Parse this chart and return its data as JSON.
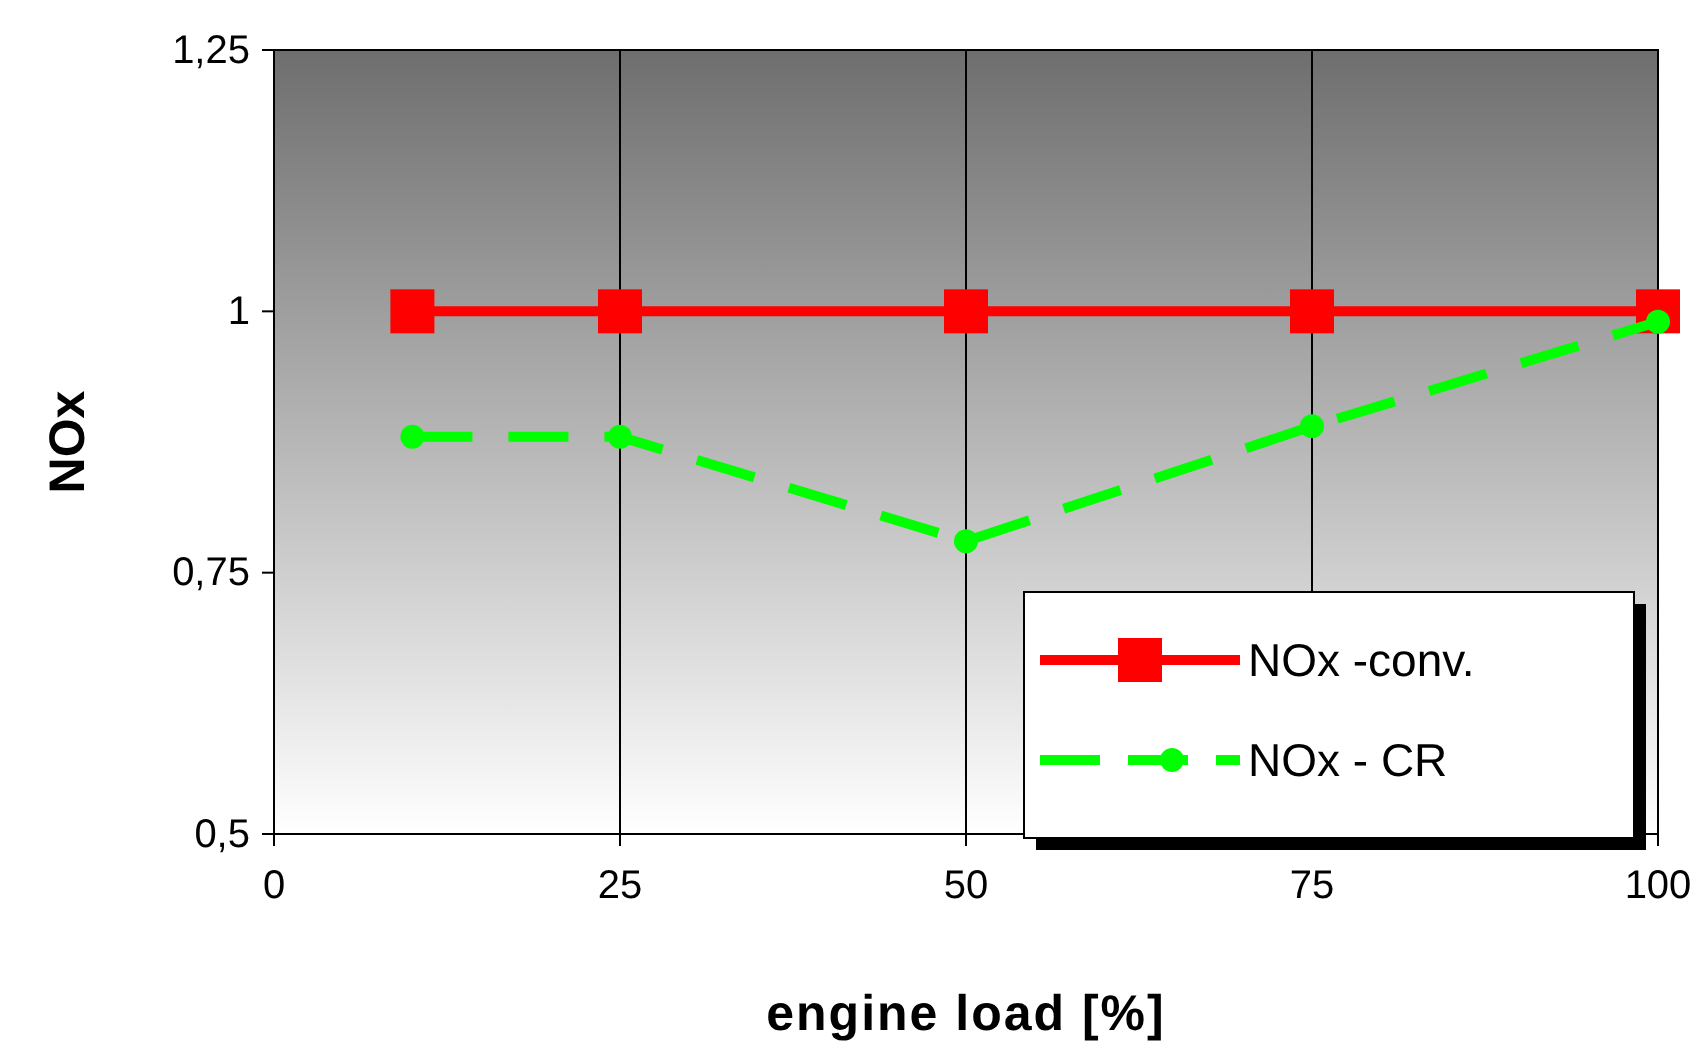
{
  "chart_data": {
    "type": "line",
    "xlabel": "engine load [%]",
    "ylabel": "NOx",
    "x": [
      10,
      25,
      50,
      75,
      100
    ],
    "series": [
      {
        "name": "NOx -conv.",
        "color": "#ff0000",
        "values": [
          1,
          1,
          1,
          1,
          1
        ],
        "marker": "square",
        "line_style": "solid"
      },
      {
        "name": "NOx - CR",
        "color": "#00ff00",
        "values": [
          0.88,
          0.88,
          0.78,
          0.89,
          0.99
        ],
        "marker": "circle",
        "line_style": "dashed"
      }
    ],
    "xlim": [
      0,
      100
    ],
    "xticks": [
      0,
      25,
      50,
      75,
      100
    ],
    "ylim": [
      0.5,
      1.25
    ],
    "yticks": [
      {
        "value": 0.5,
        "label": "0,5"
      },
      {
        "value": 0.75,
        "label": "0,75"
      },
      {
        "value": 1,
        "label": "1"
      },
      {
        "value": 1.25,
        "label": "1,25"
      }
    ],
    "grid": "x",
    "legend": "bottom right"
  }
}
